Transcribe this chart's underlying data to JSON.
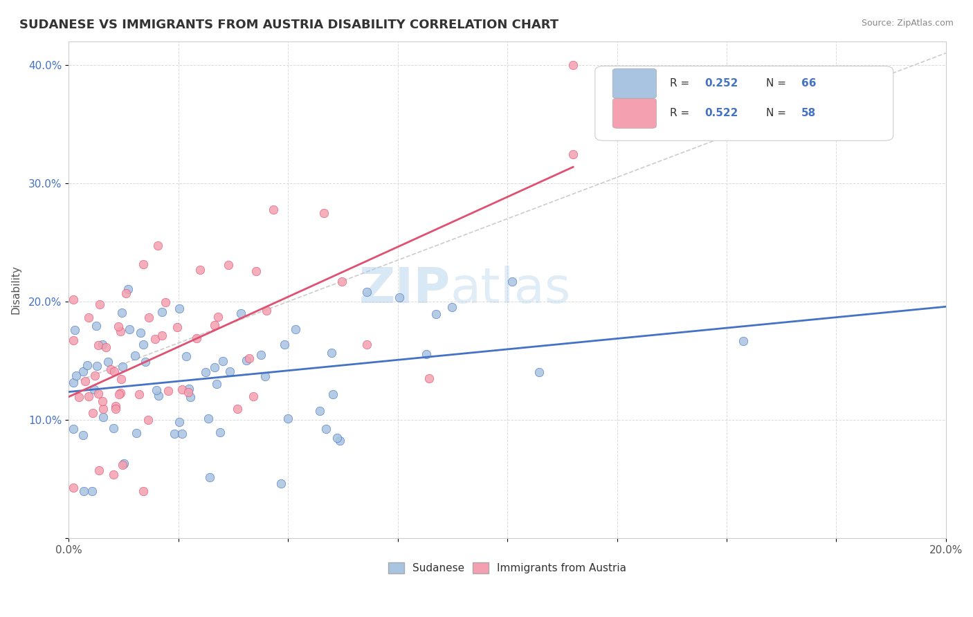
{
  "title": "SUDANESE VS IMMIGRANTS FROM AUSTRIA DISABILITY CORRELATION CHART",
  "source": "Source: ZipAtlas.com",
  "ylabel": "Disability",
  "xlim": [
    0.0,
    0.2
  ],
  "ylim": [
    0.0,
    0.42
  ],
  "sudanese_color": "#a8c4e0",
  "austria_color": "#f4a0b0",
  "sudanese_line_color": "#4472c4",
  "austria_line_color": "#e05070",
  "R_sudanese": 0.252,
  "N_sudanese": 66,
  "R_austria": 0.522,
  "N_austria": 58,
  "legend_label_1": "Sudanese",
  "legend_label_2": "Immigrants from Austria",
  "watermark_zip": "ZIP",
  "watermark_atlas": "atlas"
}
